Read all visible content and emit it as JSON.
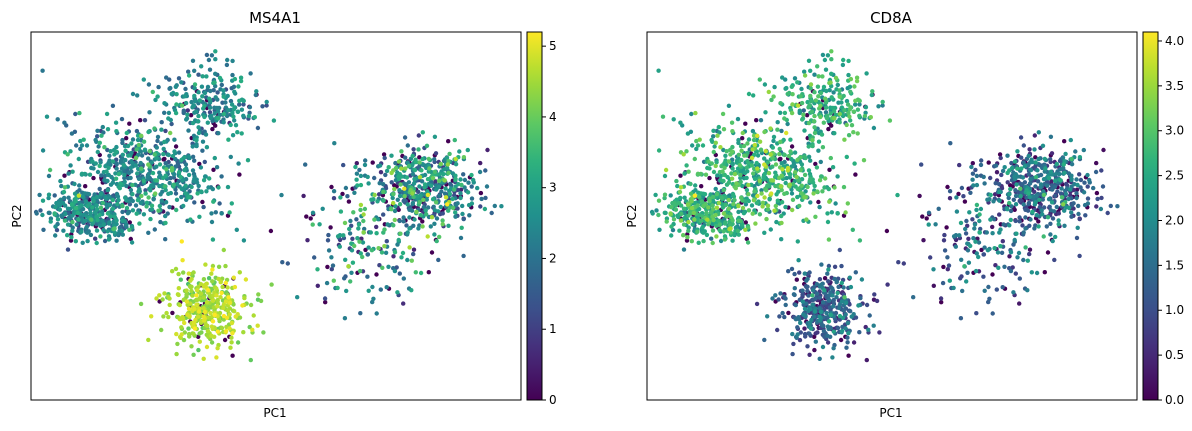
{
  "chart_data": [
    {
      "type": "scatter",
      "title": "MS4A1",
      "xlabel": "PC1",
      "ylabel": "PC2",
      "colormap": "viridis",
      "vmin": 0,
      "vmax": 5.2,
      "colorbar_ticks": [
        "0",
        "1",
        "2",
        "3",
        "4",
        "5"
      ],
      "clusters": [
        {
          "name": "upper-left",
          "mean": 2.4,
          "spread": 0.6
        },
        {
          "name": "bottom",
          "mean": 4.5,
          "spread": 0.35
        },
        {
          "name": "right",
          "mean": 2.3,
          "spread": 1.1
        }
      ]
    },
    {
      "type": "scatter",
      "title": "CD8A",
      "xlabel": "PC1",
      "ylabel": "PC2",
      "colormap": "viridis",
      "vmin": 0,
      "vmax": 4.1,
      "colorbar_ticks": [
        "0.0",
        "0.5",
        "1.0",
        "1.5",
        "2.0",
        "2.5",
        "3.0",
        "3.5",
        "4.0"
      ],
      "clusters": [
        {
          "name": "upper-left",
          "mean": 2.6,
          "spread": 0.45
        },
        {
          "name": "bottom",
          "mean": 1.2,
          "spread": 0.55
        },
        {
          "name": "right",
          "mean": 1.3,
          "spread": 0.7
        }
      ]
    }
  ],
  "colors": {
    "viridis_low": "#440154",
    "viridis_mid": "#21918c",
    "viridis_high": "#fde725"
  }
}
